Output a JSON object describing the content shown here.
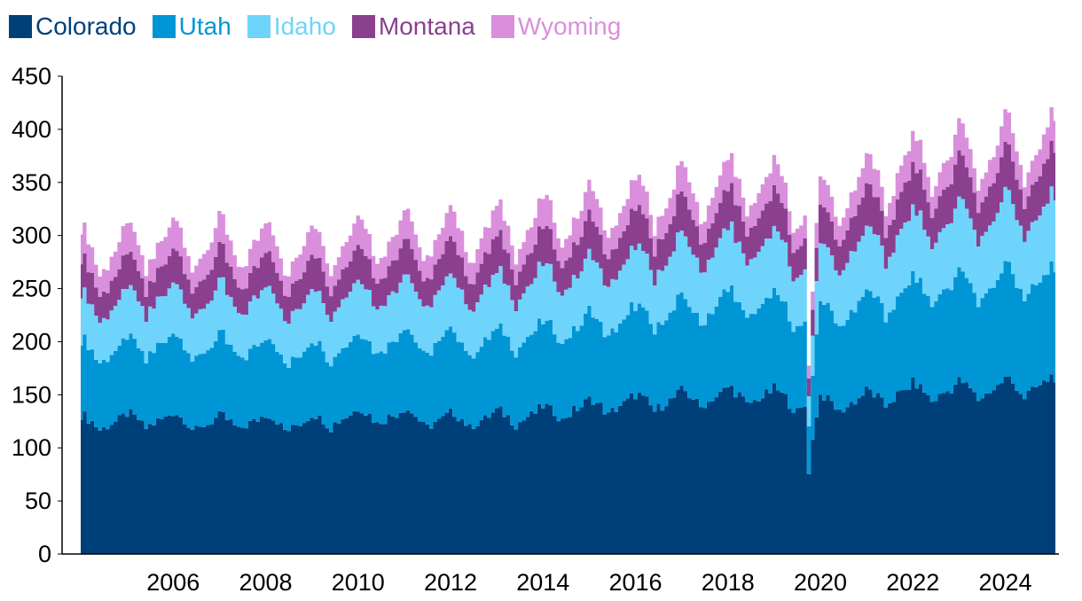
{
  "chart_data": {
    "type": "area",
    "stacked": true,
    "title": "",
    "xlabel": "",
    "ylabel": "",
    "frequency": "monthly",
    "start": "2004-07",
    "end": "2025-08",
    "ylim": [
      0,
      450
    ],
    "yticks": [
      0,
      50,
      100,
      150,
      200,
      250,
      300,
      350,
      400,
      450
    ],
    "xticks": [
      "2006",
      "2008",
      "2010",
      "2012",
      "2014",
      "2016",
      "2018",
      "2020",
      "2022",
      "2024"
    ],
    "grid": false,
    "legend": {
      "position": "top-left"
    },
    "series": [
      {
        "name": "Colorado",
        "color": "#00407A",
        "annual_level": [
          {
            "year": 2004,
            "value": 123
          },
          {
            "year": 2005,
            "value": 124
          },
          {
            "year": 2006,
            "value": 127
          },
          {
            "year": 2007,
            "value": 122
          },
          {
            "year": 2008,
            "value": 125
          },
          {
            "year": 2009,
            "value": 122
          },
          {
            "year": 2010,
            "value": 129
          },
          {
            "year": 2011,
            "value": 131
          },
          {
            "year": 2012,
            "value": 125
          },
          {
            "year": 2013,
            "value": 127
          },
          {
            "year": 2014,
            "value": 130
          },
          {
            "year": 2015,
            "value": 136
          },
          {
            "year": 2016,
            "value": 141
          },
          {
            "year": 2017,
            "value": 144
          },
          {
            "year": 2018,
            "value": 148
          },
          {
            "year": 2019,
            "value": 149
          },
          {
            "year": 2020,
            "value": 140
          },
          {
            "year": 2021,
            "value": 143
          },
          {
            "year": 2022,
            "value": 151
          },
          {
            "year": 2023,
            "value": 153
          },
          {
            "year": 2024,
            "value": 155
          },
          {
            "year": 2025,
            "value": 158
          }
        ]
      },
      {
        "name": "Utah",
        "color": "#0096D6",
        "annual_level": [
          {
            "year": 2004,
            "value": 67
          },
          {
            "year": 2005,
            "value": 66
          },
          {
            "year": 2006,
            "value": 70
          },
          {
            "year": 2007,
            "value": 71
          },
          {
            "year": 2008,
            "value": 69
          },
          {
            "year": 2009,
            "value": 65
          },
          {
            "year": 2010,
            "value": 67
          },
          {
            "year": 2011,
            "value": 70
          },
          {
            "year": 2012,
            "value": 73
          },
          {
            "year": 2013,
            "value": 71
          },
          {
            "year": 2014,
            "value": 74
          },
          {
            "year": 2015,
            "value": 77
          },
          {
            "year": 2016,
            "value": 79
          },
          {
            "year": 2017,
            "value": 82
          },
          {
            "year": 2018,
            "value": 85
          },
          {
            "year": 2019,
            "value": 87
          },
          {
            "year": 2020,
            "value": 80
          },
          {
            "year": 2021,
            "value": 86
          },
          {
            "year": 2022,
            "value": 93
          },
          {
            "year": 2023,
            "value": 96
          },
          {
            "year": 2024,
            "value": 98
          },
          {
            "year": 2025,
            "value": 99
          }
        ]
      },
      {
        "name": "Idaho",
        "color": "#6FD4FB",
        "annual_level": [
          {
            "year": 2004,
            "value": 42
          },
          {
            "year": 2005,
            "value": 42
          },
          {
            "year": 2006,
            "value": 44
          },
          {
            "year": 2007,
            "value": 44
          },
          {
            "year": 2008,
            "value": 45
          },
          {
            "year": 2009,
            "value": 45
          },
          {
            "year": 2010,
            "value": 46
          },
          {
            "year": 2011,
            "value": 46
          },
          {
            "year": 2012,
            "value": 47
          },
          {
            "year": 2013,
            "value": 48
          },
          {
            "year": 2014,
            "value": 49
          },
          {
            "year": 2015,
            "value": 50
          },
          {
            "year": 2016,
            "value": 51
          },
          {
            "year": 2017,
            "value": 53
          },
          {
            "year": 2018,
            "value": 54
          },
          {
            "year": 2019,
            "value": 55
          },
          {
            "year": 2020,
            "value": 50
          },
          {
            "year": 2021,
            "value": 55
          },
          {
            "year": 2022,
            "value": 58
          },
          {
            "year": 2023,
            "value": 60
          },
          {
            "year": 2024,
            "value": 62
          },
          {
            "year": 2025,
            "value": 63
          }
        ]
      },
      {
        "name": "Montana",
        "color": "#8B3F8F",
        "annual_level": [
          {
            "year": 2004,
            "value": 28
          },
          {
            "year": 2005,
            "value": 28
          },
          {
            "year": 2006,
            "value": 28
          },
          {
            "year": 2007,
            "value": 28
          },
          {
            "year": 2008,
            "value": 28
          },
          {
            "year": 2009,
            "value": 28
          },
          {
            "year": 2010,
            "value": 28
          },
          {
            "year": 2011,
            "value": 29
          },
          {
            "year": 2012,
            "value": 29
          },
          {
            "year": 2013,
            "value": 30
          },
          {
            "year": 2014,
            "value": 30
          },
          {
            "year": 2015,
            "value": 31
          },
          {
            "year": 2016,
            "value": 31
          },
          {
            "year": 2017,
            "value": 32
          },
          {
            "year": 2018,
            "value": 32
          },
          {
            "year": 2019,
            "value": 33
          },
          {
            "year": 2020,
            "value": 30
          },
          {
            "year": 2021,
            "value": 33
          },
          {
            "year": 2022,
            "value": 35
          },
          {
            "year": 2023,
            "value": 36
          },
          {
            "year": 2024,
            "value": 37
          },
          {
            "year": 2025,
            "value": 38
          }
        ]
      },
      {
        "name": "Wyoming",
        "color": "#DA8FDC",
        "annual_level": [
          {
            "year": 2004,
            "value": 24
          },
          {
            "year": 2005,
            "value": 24
          },
          {
            "year": 2006,
            "value": 24
          },
          {
            "year": 2007,
            "value": 24
          },
          {
            "year": 2008,
            "value": 24
          },
          {
            "year": 2009,
            "value": 23
          },
          {
            "year": 2010,
            "value": 23
          },
          {
            "year": 2011,
            "value": 23
          },
          {
            "year": 2012,
            "value": 24
          },
          {
            "year": 2013,
            "value": 24
          },
          {
            "year": 2014,
            "value": 24
          },
          {
            "year": 2015,
            "value": 24
          },
          {
            "year": 2016,
            "value": 24
          },
          {
            "year": 2017,
            "value": 24
          },
          {
            "year": 2018,
            "value": 24
          },
          {
            "year": 2019,
            "value": 24
          },
          {
            "year": 2020,
            "value": 22
          },
          {
            "year": 2021,
            "value": 24
          },
          {
            "year": 2022,
            "value": 25
          },
          {
            "year": 2023,
            "value": 25
          },
          {
            "year": 2024,
            "value": 25
          },
          {
            "year": 2025,
            "value": 26
          }
        ]
      }
    ]
  }
}
